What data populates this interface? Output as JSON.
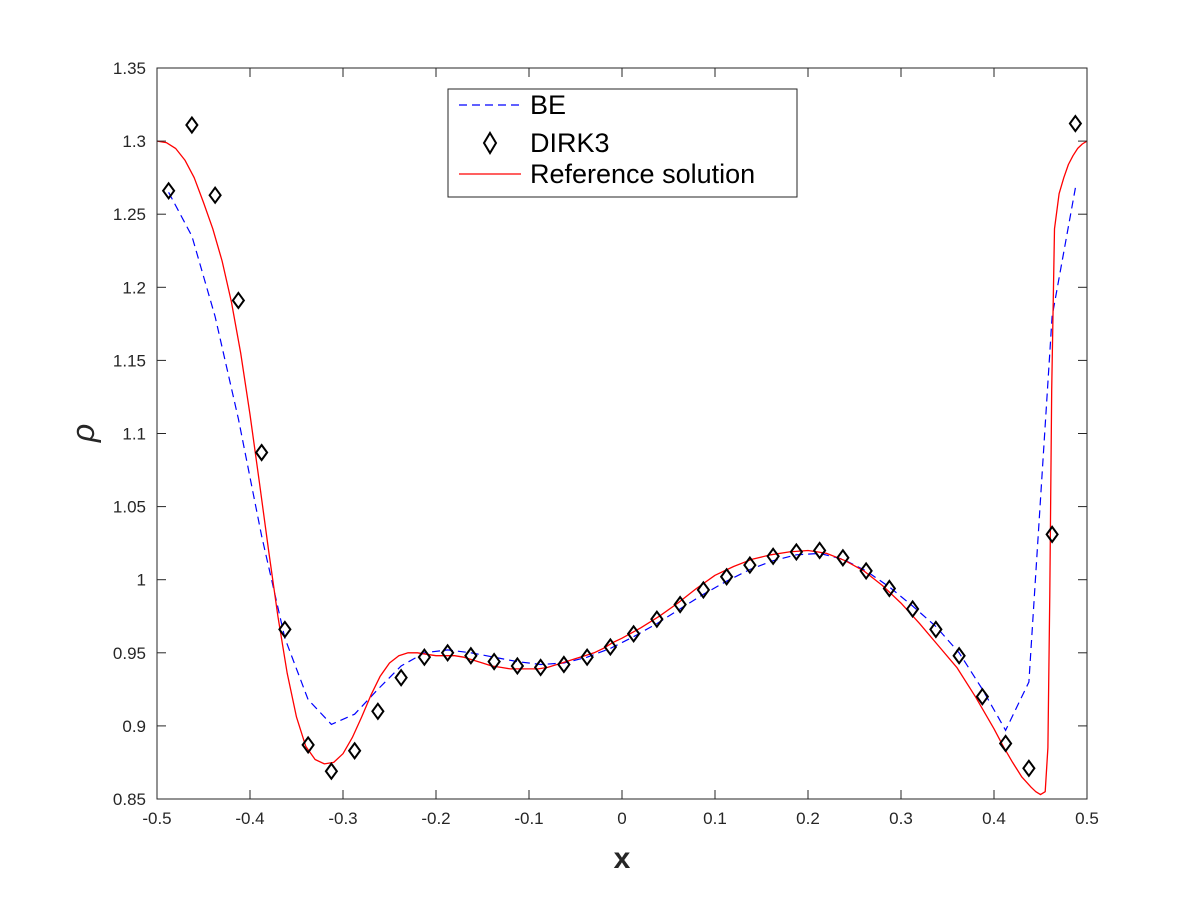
{
  "chart_data": {
    "type": "line",
    "title": "",
    "xlabel": "x",
    "ylabel": "ρ",
    "xlim": [
      -0.5,
      0.5
    ],
    "ylim": [
      0.85,
      1.35
    ],
    "xticks": [
      -0.5,
      -0.4,
      -0.3,
      -0.2,
      -0.1,
      0,
      0.1,
      0.2,
      0.3,
      0.4,
      0.5
    ],
    "xtick_labels": [
      "-0.5",
      "-0.4",
      "-0.3",
      "-0.2",
      "-0.1",
      "0",
      "0.1",
      "0.2",
      "0.3",
      "0.4",
      "0.5"
    ],
    "yticks": [
      0.85,
      0.9,
      0.95,
      1,
      1.05,
      1.1,
      1.15,
      1.2,
      1.25,
      1.3,
      1.35
    ],
    "ytick_labels": [
      "0.85",
      "0.9",
      "0.95",
      "1",
      "1.05",
      "1.1",
      "1.15",
      "1.2",
      "1.25",
      "1.3",
      "1.35"
    ],
    "grid": false,
    "legend_position": "top-center",
    "colors": {
      "be": "#0000ff",
      "dirk3": "#000000",
      "reference": "#ff0000"
    },
    "series": [
      {
        "name": "BE",
        "style": "dashed",
        "x": [
          -0.4875,
          -0.4625,
          -0.4375,
          -0.4125,
          -0.3875,
          -0.3625,
          -0.3375,
          -0.3125,
          -0.2875,
          -0.2625,
          -0.2375,
          -0.2125,
          -0.1875,
          -0.1625,
          -0.1375,
          -0.1125,
          -0.0875,
          -0.0625,
          -0.0375,
          -0.0125,
          0.0125,
          0.0375,
          0.0625,
          0.0875,
          0.1125,
          0.1375,
          0.1625,
          0.1875,
          0.2125,
          0.2375,
          0.2625,
          0.2875,
          0.3125,
          0.3375,
          0.3625,
          0.3875,
          0.4125,
          0.4375,
          0.4625,
          0.4875
        ],
        "y": [
          1.265,
          1.235,
          1.18,
          1.11,
          1.03,
          0.96,
          0.918,
          0.901,
          0.908,
          0.925,
          0.941,
          0.95,
          0.952,
          0.95,
          0.947,
          0.944,
          0.942,
          0.943,
          0.947,
          0.953,
          0.961,
          0.97,
          0.98,
          0.99,
          0.999,
          1.007,
          1.013,
          1.017,
          1.018,
          1.014,
          1.006,
          0.995,
          0.982,
          0.968,
          0.95,
          0.925,
          0.897,
          0.93,
          1.18,
          1.268
        ]
      },
      {
        "name": "DIRK3",
        "style": "markers",
        "x": [
          -0.4875,
          -0.4625,
          -0.4375,
          -0.4125,
          -0.3875,
          -0.3625,
          -0.3375,
          -0.3125,
          -0.2875,
          -0.2625,
          -0.2375,
          -0.2125,
          -0.1875,
          -0.1625,
          -0.1375,
          -0.1125,
          -0.0875,
          -0.0625,
          -0.0375,
          -0.0125,
          0.0125,
          0.0375,
          0.0625,
          0.0875,
          0.1125,
          0.1375,
          0.1625,
          0.1875,
          0.2125,
          0.2375,
          0.2625,
          0.2875,
          0.3125,
          0.3375,
          0.3625,
          0.3875,
          0.4125,
          0.4375,
          0.4625,
          0.4875
        ],
        "y": [
          1.266,
          1.311,
          1.263,
          1.191,
          1.087,
          0.966,
          0.887,
          0.869,
          0.883,
          0.91,
          0.933,
          0.947,
          0.95,
          0.948,
          0.944,
          0.941,
          0.94,
          0.942,
          0.947,
          0.954,
          0.963,
          0.973,
          0.983,
          0.993,
          1.002,
          1.01,
          1.016,
          1.019,
          1.02,
          1.015,
          1.006,
          0.994,
          0.98,
          0.966,
          0.948,
          0.92,
          0.888,
          0.871,
          1.031,
          1.312
        ]
      },
      {
        "name": "Reference solution",
        "style": "solid",
        "x": [
          -0.5,
          -0.49,
          -0.48,
          -0.47,
          -0.46,
          -0.45,
          -0.44,
          -0.43,
          -0.42,
          -0.41,
          -0.4,
          -0.39,
          -0.38,
          -0.37,
          -0.36,
          -0.35,
          -0.34,
          -0.33,
          -0.32,
          -0.31,
          -0.3,
          -0.29,
          -0.28,
          -0.27,
          -0.26,
          -0.25,
          -0.24,
          -0.23,
          -0.22,
          -0.21,
          -0.2,
          -0.19,
          -0.18,
          -0.17,
          -0.16,
          -0.15,
          -0.14,
          -0.13,
          -0.12,
          -0.11,
          -0.1,
          -0.09,
          -0.08,
          -0.07,
          -0.06,
          -0.05,
          -0.04,
          -0.03,
          -0.02,
          -0.01,
          0,
          0.02,
          0.04,
          0.06,
          0.08,
          0.1,
          0.12,
          0.14,
          0.16,
          0.18,
          0.2,
          0.21,
          0.22,
          0.24,
          0.26,
          0.28,
          0.3,
          0.32,
          0.34,
          0.36,
          0.38,
          0.4,
          0.41,
          0.42,
          0.43,
          0.44,
          0.445,
          0.45,
          0.455,
          0.458,
          0.46,
          0.462,
          0.465,
          0.47,
          0.475,
          0.48,
          0.485,
          0.49,
          0.495,
          0.5
        ],
        "y": [
          1.3,
          1.299,
          1.295,
          1.287,
          1.275,
          1.258,
          1.24,
          1.218,
          1.19,
          1.155,
          1.113,
          1.067,
          1.02,
          0.975,
          0.936,
          0.906,
          0.886,
          0.877,
          0.874,
          0.875,
          0.881,
          0.892,
          0.906,
          0.921,
          0.934,
          0.943,
          0.948,
          0.95,
          0.95,
          0.949,
          0.948,
          0.948,
          0.948,
          0.947,
          0.945,
          0.943,
          0.941,
          0.94,
          0.939,
          0.939,
          0.939,
          0.939,
          0.94,
          0.942,
          0.944,
          0.946,
          0.948,
          0.95,
          0.953,
          0.957,
          0.96,
          0.967,
          0.975,
          0.984,
          0.994,
          1.003,
          1.009,
          1.014,
          1.017,
          1.019,
          1.02,
          1.019,
          1.018,
          1.013,
          1.006,
          0.996,
          0.984,
          0.97,
          0.955,
          0.94,
          0.92,
          0.898,
          0.886,
          0.875,
          0.865,
          0.858,
          0.855,
          0.853,
          0.855,
          0.885,
          0.99,
          1.13,
          1.24,
          1.264,
          1.275,
          1.284,
          1.29,
          1.295,
          1.298,
          1.3
        ]
      }
    ]
  }
}
